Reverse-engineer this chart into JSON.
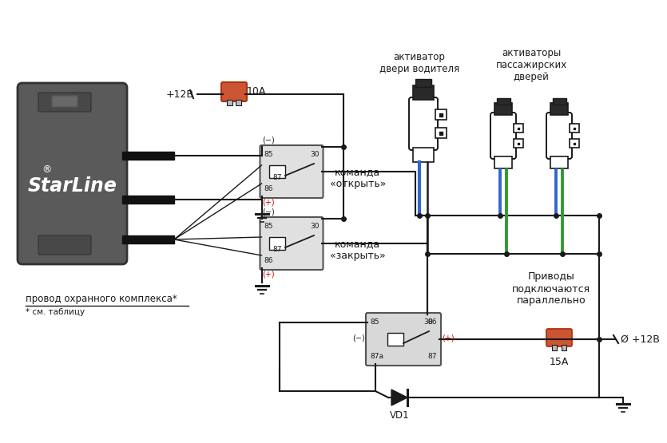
{
  "bg_color": "#ffffff",
  "line_color": "#1a1a1a",
  "relay_fill": "#d8d8d8",
  "relay_border": "#555555",
  "starline_fill": "#5a5a5a",
  "wire_blue": "#3366cc",
  "wire_green": "#339933",
  "texts": {
    "aktivator_driver": "активатор\nдвери водителя",
    "aktivator_pass": "активаторы\nпассажирских\nдверей",
    "cmd_open": "команда\n«открыть»",
    "cmd_close": "команда\n«закрыть»",
    "parallel": "Приводы\nподключаются\nпараллельно",
    "wire_label": "провод охранного комплекса*",
    "footnote": "* см. таблицу",
    "plus12v_top": "+12В",
    "fuse_top": "10А",
    "fuse_bottom": "15А",
    "plus12v_bottom": "Ø +12В",
    "vd1": "VD1",
    "starline": "StarLine",
    "reg": "®",
    "minus": "(−)",
    "plus": "(+)"
  }
}
